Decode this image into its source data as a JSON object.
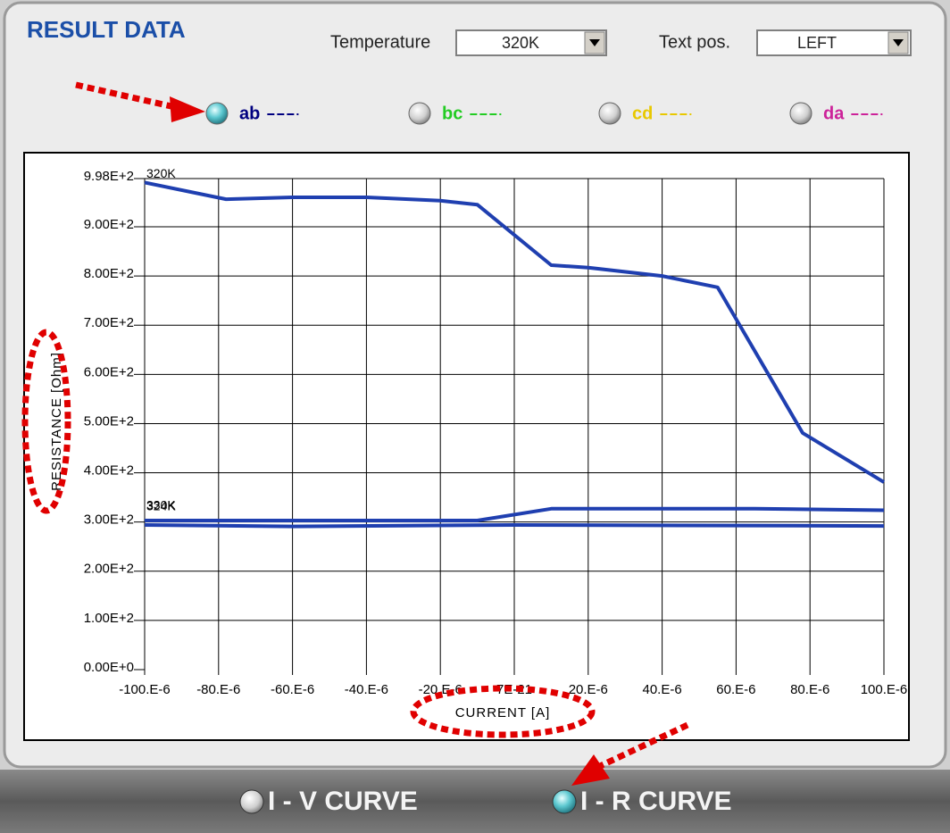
{
  "header": {
    "title": "RESULT DATA",
    "temperature_label": "Temperature",
    "temperature_value": "320K",
    "text_pos_label": "Text pos.",
    "text_pos_value": "LEFT"
  },
  "channels": [
    {
      "label": "ab",
      "color": "#000080",
      "selected": true
    },
    {
      "label": "bc",
      "color": "#22cc22",
      "selected": false
    },
    {
      "label": "cd",
      "color": "#e8c800",
      "selected": false
    },
    {
      "label": "da",
      "color": "#cc2299",
      "selected": false
    }
  ],
  "chart_data": {
    "type": "line",
    "xlabel": "CURRENT [A]",
    "ylabel": "RESISTANCE [Ohm]",
    "xlim": [
      -0.0001,
      0.0001
    ],
    "xticks": [
      {
        "value": -0.0001,
        "label": "-100.E-6"
      },
      {
        "value": -8e-05,
        "label": "-80.E-6"
      },
      {
        "value": -6e-05,
        "label": "-60.E-6"
      },
      {
        "value": -4e-05,
        "label": "-40.E-6"
      },
      {
        "value": -2e-05,
        "label": "-20.E-6"
      },
      {
        "value": 7e-21,
        "label": "7E-21"
      },
      {
        "value": 2e-05,
        "label": "20.E-6"
      },
      {
        "value": 4e-05,
        "label": "40.E-6"
      },
      {
        "value": 6e-05,
        "label": "60.E-6"
      },
      {
        "value": 8e-05,
        "label": "80.E-6"
      },
      {
        "value": 0.0001,
        "label": "100.E-6"
      }
    ],
    "ylim": [
      0,
      998
    ],
    "yticks": [
      {
        "value": 0,
        "label": "0.00E+0"
      },
      {
        "value": 100,
        "label": "1.00E+2"
      },
      {
        "value": 200,
        "label": "2.00E+2"
      },
      {
        "value": 300,
        "label": "3.00E+2"
      },
      {
        "value": 400,
        "label": "4.00E+2"
      },
      {
        "value": 500,
        "label": "5.00E+2"
      },
      {
        "value": 600,
        "label": "6.00E+2"
      },
      {
        "value": 700,
        "label": "7.00E+2"
      },
      {
        "value": 800,
        "label": "8.00E+2"
      },
      {
        "value": 900,
        "label": "9.00E+2"
      },
      {
        "value": 998,
        "label": "9.98E+2"
      }
    ],
    "grid": true,
    "series": [
      {
        "name": "320K",
        "color": "#1f3fb0",
        "x": [
          -0.0001,
          -7.8e-05,
          -6e-05,
          -4e-05,
          -2e-05,
          -1e-05,
          1e-05,
          2e-05,
          4e-05,
          5.5e-05,
          7.8e-05,
          0.0001
        ],
        "values": [
          990,
          956,
          960,
          960,
          953,
          945,
          822,
          817,
          800,
          777,
          481,
          381
        ]
      },
      {
        "name": "324K",
        "color": "#1f3fb0",
        "x": [
          -0.0001,
          -1e-05,
          1e-05,
          6.5e-05,
          0.0001
        ],
        "values": [
          303,
          303,
          327,
          327,
          324
        ]
      },
      {
        "name": "330K",
        "color": "#1f3fb0",
        "x": [
          -0.0001,
          -6e-05,
          0.0,
          0.0001
        ],
        "values": [
          294,
          291,
          294,
          292
        ]
      }
    ]
  },
  "footer": {
    "buttons": [
      {
        "label": "I - V CURVE",
        "selected": false
      },
      {
        "label": "I - R CURVE",
        "selected": true
      }
    ]
  }
}
